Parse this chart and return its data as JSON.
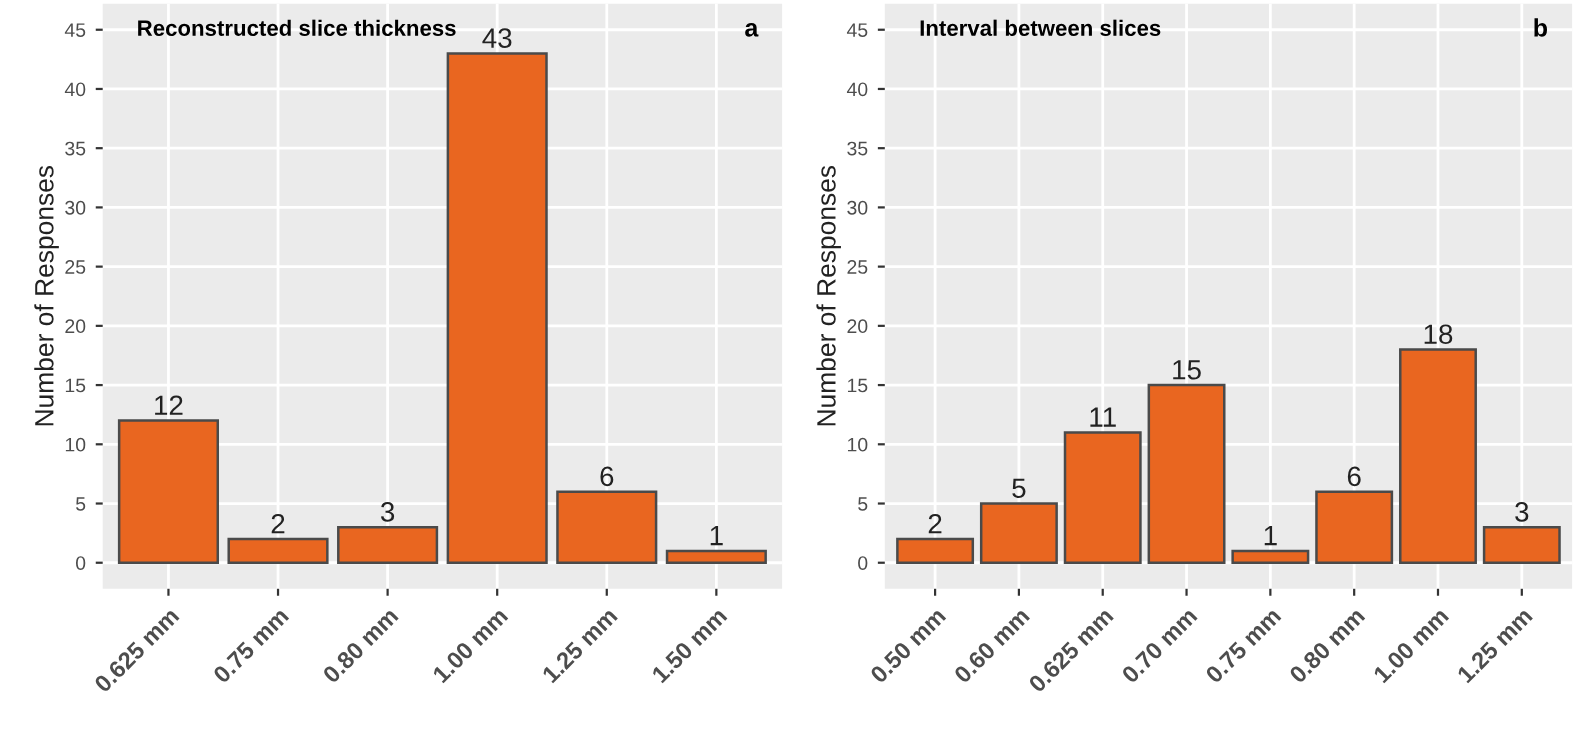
{
  "chart_data": [
    {
      "type": "bar",
      "title": "Reconstructed slice thickness",
      "ylabel": "Number of Responses",
      "annotations": [
        "a"
      ],
      "categories": [
        "0.625 mm",
        "0.75 mm",
        "0.80 mm",
        "1.00 mm",
        "1.25 mm",
        "1.50 mm"
      ],
      "values": [
        12,
        2,
        3,
        43,
        6,
        1
      ],
      "color": "#e96620",
      "data_labels": true,
      "ylim": [
        -2.2,
        47.2
      ],
      "yticks": [
        0,
        5,
        10,
        15,
        20,
        25,
        30,
        35,
        40,
        45
      ],
      "grid": true,
      "legend": false
    },
    {
      "type": "bar",
      "title": "Interval between slices",
      "ylabel": "Number of Responses",
      "annotations": [
        "b"
      ],
      "categories": [
        "0.50 mm",
        "0.60 mm",
        "0.625 mm",
        "0.70 mm",
        "0.75 mm",
        "0.80 mm",
        "1.00 mm",
        "1.25 mm"
      ],
      "values": [
        2,
        5,
        11,
        15,
        1,
        6,
        18,
        3
      ],
      "color": "#e96620",
      "data_labels": true,
      "ylim": [
        -2.2,
        47.2
      ],
      "yticks": [
        0,
        5,
        10,
        15,
        20,
        25,
        30,
        35,
        40,
        45
      ],
      "grid": true,
      "legend": false
    }
  ]
}
